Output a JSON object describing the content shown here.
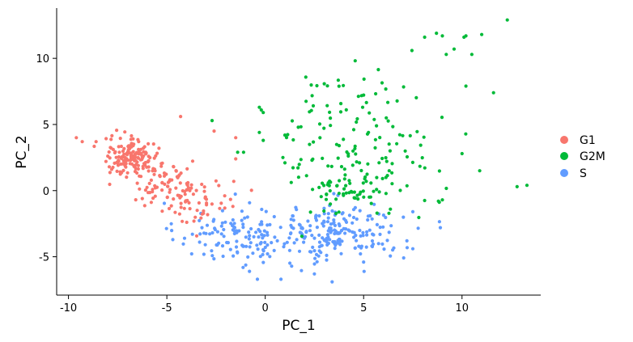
{
  "chart_data": {
    "type": "scatter",
    "xlabel": "PC_1",
    "ylabel": "PC_2",
    "xlim": [
      -10.6,
      14.0
    ],
    "ylim": [
      -7.9,
      13.8
    ],
    "x_ticks": [
      -10,
      -5,
      0,
      5,
      10
    ],
    "y_ticks": [
      -5,
      0,
      5,
      10
    ],
    "x_tick_labels": [
      "-10",
      "-5",
      "0",
      "5",
      "10"
    ],
    "y_tick_labels": [
      "-5",
      "0",
      "5",
      "10"
    ],
    "grid": false,
    "legend_position": "right",
    "series": [
      {
        "name": "G1",
        "color": "#F8766D",
        "clusters": [
          {
            "cx": -6.8,
            "cy": 2.6,
            "sx": 0.7,
            "sy": 0.7,
            "n": 150
          },
          {
            "cx": -5.0,
            "cy": 0.5,
            "sx": 1.0,
            "sy": 1.0,
            "n": 90
          },
          {
            "cx": -3.3,
            "cy": -0.8,
            "sx": 0.9,
            "sy": 0.8,
            "n": 40
          }
        ],
        "points": [
          [
            -9.6,
            4.0
          ],
          [
            -9.3,
            3.7
          ],
          [
            -4.3,
            5.6
          ],
          [
            -2.6,
            4.5
          ],
          [
            -1.5,
            4.0
          ],
          [
            -1.5,
            2.4
          ],
          [
            -1.6,
            0.7
          ],
          [
            -5.4,
            3.2
          ]
        ]
      },
      {
        "name": "G2M",
        "color": "#00BA38",
        "clusters": [
          {
            "cx": 4.8,
            "cy": 3.5,
            "sx": 1.9,
            "sy": 2.8,
            "n": 150
          },
          {
            "cx": 4.2,
            "cy": 0.0,
            "sx": 1.0,
            "sy": 0.5,
            "n": 40
          }
        ],
        "points": [
          [
            12.3,
            12.9
          ],
          [
            11.0,
            11.8
          ],
          [
            10.1,
            11.6
          ],
          [
            10.2,
            11.7
          ],
          [
            9.6,
            10.7
          ],
          [
            9.0,
            11.7
          ],
          [
            8.7,
            11.9
          ],
          [
            8.1,
            11.6
          ],
          [
            9.2,
            10.3
          ],
          [
            10.5,
            10.3
          ],
          [
            12.8,
            0.3
          ],
          [
            13.3,
            0.4
          ],
          [
            11.6,
            7.4
          ],
          [
            10.2,
            7.9
          ],
          [
            10.0,
            2.8
          ],
          [
            10.9,
            1.5
          ],
          [
            9.0,
            -0.7
          ],
          [
            8.8,
            -0.8
          ],
          [
            -0.3,
            6.3
          ],
          [
            -0.2,
            6.1
          ],
          [
            -0.1,
            5.9
          ],
          [
            -2.7,
            5.3
          ],
          [
            -0.3,
            4.4
          ],
          [
            -0.1,
            3.8
          ],
          [
            1.0,
            4.2
          ],
          [
            -1.4,
            2.9
          ],
          [
            -1.1,
            2.9
          ],
          [
            1.0,
            2.1
          ]
        ]
      },
      {
        "name": "S",
        "color": "#619CFF",
        "clusters": [
          {
            "cx": -1.5,
            "cy": -3.3,
            "sx": 1.5,
            "sy": 1.2,
            "n": 120
          },
          {
            "cx": 3.7,
            "cy": -3.2,
            "sx": 1.6,
            "sy": 1.1,
            "n": 200
          }
        ],
        "points": [
          [
            -0.4,
            -6.7
          ],
          [
            0.8,
            -6.7
          ],
          [
            3.4,
            -6.9
          ],
          [
            2.5,
            -6.3
          ],
          [
            -0.8,
            -6.1
          ],
          [
            5.0,
            -5.4
          ],
          [
            7.5,
            -4.4
          ],
          [
            7.2,
            -3.8
          ],
          [
            8.9,
            -2.8
          ],
          [
            7.5,
            -1.6
          ],
          [
            -4.1,
            -3.6
          ],
          [
            -3.7,
            -3.3
          ]
        ]
      }
    ]
  },
  "legend": {
    "items": [
      {
        "label": "G1",
        "color": "#F8766D"
      },
      {
        "label": "G2M",
        "color": "#00BA38"
      },
      {
        "label": "S",
        "color": "#619CFF"
      }
    ]
  }
}
